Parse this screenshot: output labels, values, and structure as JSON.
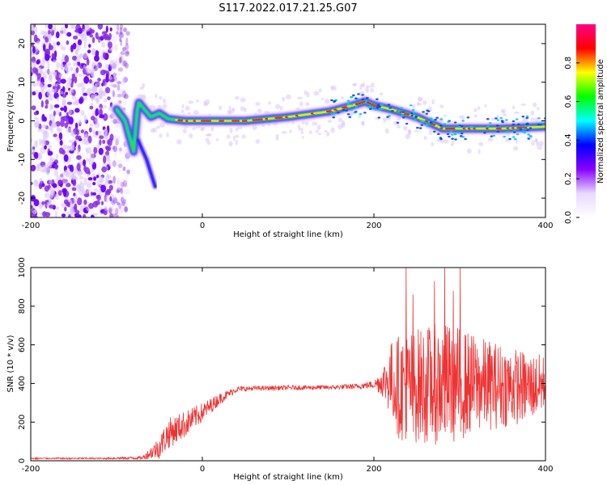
{
  "figure": {
    "title": "S117.2022.017.21.25.G07"
  },
  "chart_data": [
    {
      "type": "heatmap",
      "xlabel": "Height of straight line (km)",
      "ylabel": "Frequency (Hz)",
      "xlim": [
        -200,
        400
      ],
      "ylim": [
        -25,
        25
      ],
      "x_ticks": [
        "-200",
        "0",
        "200",
        "400"
      ],
      "y_ticks": [
        "-20",
        "-10",
        "0",
        "10",
        "20"
      ],
      "colorbar": {
        "label": "Normalized spectral amplitude",
        "range": [
          0,
          1
        ],
        "ticks": [
          "0.0",
          "0.2",
          "0.4",
          "0.6",
          "0.8"
        ],
        "colors": [
          "#ffffff",
          "#e8d8ff",
          "#8800ff",
          "#0000ff",
          "#00ffff",
          "#00ff00",
          "#ffff00",
          "#ff0000",
          "#ff0088"
        ]
      },
      "ridge": {
        "x": [
          -100,
          -90,
          -80,
          -75,
          -60,
          -50,
          -40,
          -20,
          0,
          50,
          100,
          150,
          175,
          190,
          200,
          220,
          250,
          280,
          300,
          350,
          400
        ],
        "y": [
          3,
          0,
          -8,
          5,
          1,
          2,
          0.5,
          0,
          0,
          0,
          1,
          2.5,
          4,
          5,
          4,
          3,
          1,
          -2,
          -2,
          -2,
          -1.5
        ]
      },
      "branch": {
        "x": [
          -75,
          -65,
          -55
        ],
        "y": [
          -5,
          -10,
          -17
        ]
      },
      "noise_region": {
        "x": [
          -200,
          -105
        ]
      }
    },
    {
      "type": "line",
      "xlabel": "Height of straight line (km)",
      "ylabel": "SNR (10 * v/v)",
      "xlim": [
        -200,
        400
      ],
      "ylim": [
        0,
        1000
      ],
      "x_ticks": [
        "-200",
        "0",
        "200",
        "400"
      ],
      "y_ticks": [
        "0",
        "200",
        "400",
        "600",
        "800",
        "1000"
      ],
      "color": "#ee3333",
      "envelope": {
        "x": [
          -200,
          -120,
          -70,
          -50,
          -40,
          -20,
          0,
          20,
          40,
          60,
          100,
          150,
          180,
          200,
          210,
          220,
          230,
          250,
          280,
          300,
          320,
          350,
          380,
          400
        ],
        "mean": [
          12,
          12,
          15,
          70,
          140,
          190,
          250,
          320,
          370,
          375,
          378,
          380,
          385,
          395,
          410,
          420,
          380,
          390,
          400,
          400,
          395,
          390,
          380,
          400
        ],
        "amplitude": [
          4,
          4,
          8,
          60,
          80,
          70,
          50,
          30,
          15,
          12,
          12,
          12,
          15,
          20,
          80,
          200,
          280,
          300,
          320,
          300,
          250,
          220,
          180,
          150
        ]
      },
      "peaks": [
        {
          "x": 237,
          "y": 1000
        },
        {
          "x": 282,
          "y": 1000
        },
        {
          "x": 300,
          "y": 1000
        },
        {
          "x": 270,
          "y": 930
        },
        {
          "x": 292,
          "y": 880
        },
        {
          "x": 245,
          "y": 860
        }
      ]
    }
  ]
}
